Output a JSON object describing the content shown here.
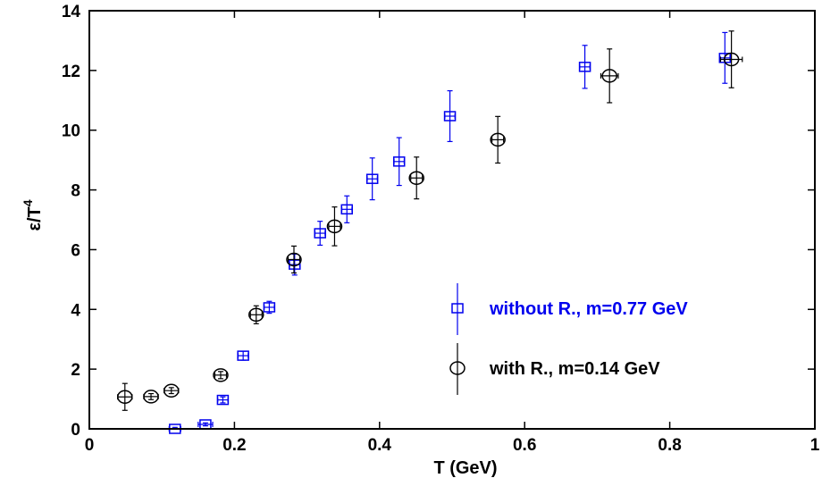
{
  "chart_data": {
    "type": "scatter",
    "xlabel": "T (GeV)",
    "ylabel_main": "ε/T",
    "ylabel_sup": "4",
    "xlim": [
      0,
      1
    ],
    "ylim": [
      0,
      14
    ],
    "xticks": [
      0,
      0.2,
      0.4,
      0.6,
      0.8,
      1
    ],
    "xtick_labels": [
      "0",
      "0.2",
      "0.4",
      "0.6",
      "0.8",
      "1"
    ],
    "yticks": [
      0,
      2,
      4,
      6,
      8,
      10,
      12,
      14
    ],
    "ytick_labels": [
      "0",
      "2",
      "4",
      "6",
      "8",
      "10",
      "12",
      "14"
    ],
    "grid": false,
    "legend_position": "lower-right",
    "series": [
      {
        "name": "without R., m=0.77 GeV",
        "marker": "square",
        "color": "#0000ee",
        "points": [
          {
            "x": 0.118,
            "y": 0.0,
            "yerr": 0.05,
            "xerr": 0.008
          },
          {
            "x": 0.16,
            "y": 0.15,
            "yerr": 0.05,
            "xerr": 0.01
          },
          {
            "x": 0.184,
            "y": 0.97,
            "yerr": 0.1,
            "xerr": 0.007
          },
          {
            "x": 0.212,
            "y": 2.45,
            "yerr": 0.15,
            "xerr": 0.007
          },
          {
            "x": 0.248,
            "y": 4.07,
            "yerr": 0.2,
            "xerr": 0.007
          },
          {
            "x": 0.283,
            "y": 5.5,
            "yerr": 0.35,
            "xerr": 0.007
          },
          {
            "x": 0.318,
            "y": 6.55,
            "yerr": 0.4,
            "xerr": 0.007
          },
          {
            "x": 0.355,
            "y": 7.35,
            "yerr": 0.45,
            "xerr": 0.007
          },
          {
            "x": 0.39,
            "y": 8.37,
            "yerr": 0.7,
            "xerr": 0.007
          },
          {
            "x": 0.427,
            "y": 8.95,
            "yerr": 0.8,
            "xerr": 0.007
          },
          {
            "x": 0.497,
            "y": 10.47,
            "yerr": 0.85,
            "xerr": 0.007
          },
          {
            "x": 0.683,
            "y": 12.12,
            "yerr": 0.72,
            "xerr": 0.007
          },
          {
            "x": 0.876,
            "y": 12.42,
            "yerr": 0.85,
            "xerr": 0.007
          }
        ]
      },
      {
        "name": "with R., m=0.14 GeV",
        "marker": "circle",
        "color": "#000000",
        "points": [
          {
            "x": 0.049,
            "y": 1.07,
            "yerr": 0.45,
            "xerr": 0.01
          },
          {
            "x": 0.085,
            "y": 1.08,
            "yerr": 0.1,
            "xerr": 0.01
          },
          {
            "x": 0.113,
            "y": 1.28,
            "yerr": 0.1,
            "xerr": 0.01
          },
          {
            "x": 0.181,
            "y": 1.8,
            "yerr": 0.12,
            "xerr": 0.008
          },
          {
            "x": 0.23,
            "y": 3.82,
            "yerr": 0.3,
            "xerr": 0.008
          },
          {
            "x": 0.282,
            "y": 5.67,
            "yerr": 0.45,
            "xerr": 0.008
          },
          {
            "x": 0.338,
            "y": 6.78,
            "yerr": 0.65,
            "xerr": 0.008
          },
          {
            "x": 0.451,
            "y": 8.4,
            "yerr": 0.7,
            "xerr": 0.008
          },
          {
            "x": 0.563,
            "y": 9.68,
            "yerr": 0.78,
            "xerr": 0.008
          },
          {
            "x": 0.717,
            "y": 11.82,
            "yerr": 0.9,
            "xerr": 0.012
          },
          {
            "x": 0.885,
            "y": 12.37,
            "yerr": 0.95,
            "xerr": 0.015
          }
        ]
      }
    ]
  }
}
